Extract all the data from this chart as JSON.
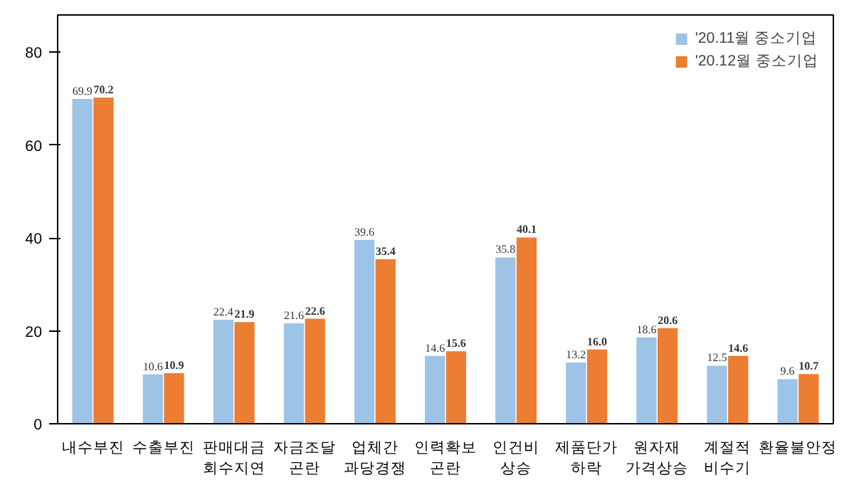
{
  "chart_data": {
    "type": "bar",
    "categories": [
      "내수부진",
      "수출부진",
      "판매대금\n회수지연",
      "자금조달\n곤란",
      "업체간\n과당경쟁",
      "인력확보\n곤란",
      "인건비\n상승",
      "제품단가\n하락",
      "원자재\n가격상승",
      "계절적\n비수기",
      "환율불안정"
    ],
    "series": [
      {
        "name": "'20.11월 중소기업",
        "color": "#9dc3e6",
        "values": [
          69.9,
          10.6,
          22.4,
          21.6,
          39.6,
          14.6,
          35.8,
          13.2,
          18.6,
          12.5,
          9.6
        ],
        "value_labels": [
          "69.9",
          "10.6",
          "22.4",
          "21.6",
          "39.6",
          "14.6",
          "35.8",
          "13.2",
          "18.6",
          "12.5",
          "9.6"
        ]
      },
      {
        "name": "'20.12월 중소기업",
        "color": "#ed7d31",
        "values": [
          70.2,
          10.9,
          21.9,
          22.6,
          35.4,
          15.6,
          40.1,
          16.0,
          20.6,
          14.6,
          10.7
        ],
        "value_labels": [
          "70.2",
          "10.9",
          "21.9",
          "22.6",
          "35.4",
          "15.6",
          "40.1",
          "16.0",
          "20.6",
          "14.6",
          "10.7"
        ]
      }
    ],
    "ylim": [
      0,
      88
    ],
    "yticks": [
      0,
      20,
      40,
      60,
      80
    ],
    "grid": false,
    "legend": "top right"
  }
}
